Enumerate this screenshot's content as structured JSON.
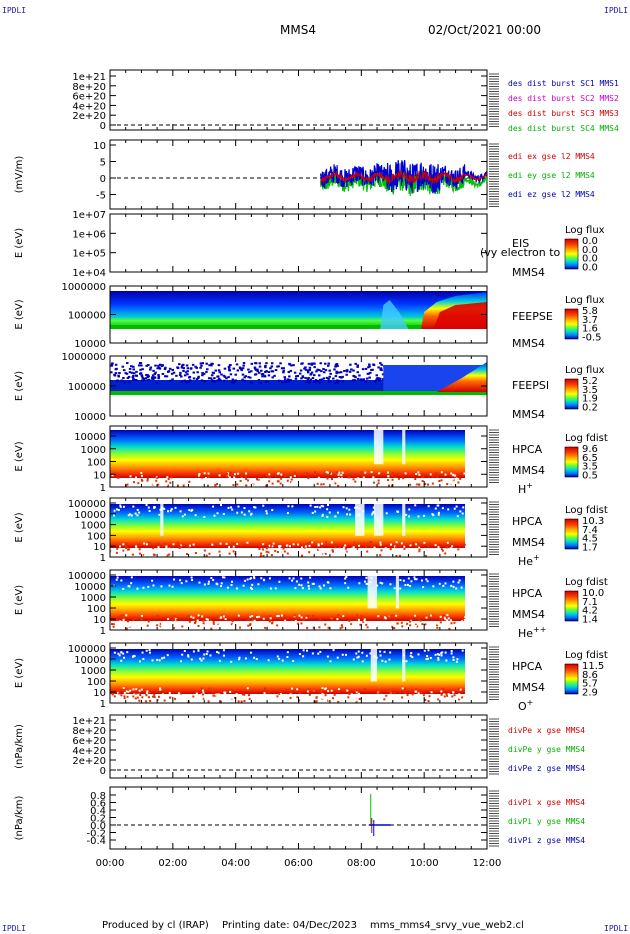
{
  "corner_label": "IPDLI",
  "header": {
    "spacecraft": "MMS4",
    "datetime": "02/Oct/2021 00:00"
  },
  "footer": {
    "produced": "Produced by cl (IRAP)",
    "printing": "Printing date: 04/Dec/2023",
    "script": "mms_mms4_srvy_vue_web2.cl"
  },
  "time_axis": {
    "ticks": [
      "00:00",
      "02:00",
      "04:00",
      "06:00",
      "08:00",
      "10:00",
      "12:00"
    ],
    "range_hours": [
      0,
      12
    ]
  },
  "colors": {
    "red": "#d00000",
    "green": "#00c000",
    "blue": "#0000d0",
    "magenta": "#e000e0",
    "legend_red": "#d00000",
    "legend_magenta": "#cc00cc",
    "legend_green": "#00b000",
    "legend_blue": "#0000b0"
  },
  "chart_data": [
    {
      "type": "line",
      "panel": "des dist burst",
      "yticks": [
        "1e+21",
        "8e+20",
        "6e+20",
        "4e+20",
        "2e+20",
        "0"
      ],
      "legend": [
        "des dist burst SC1 MMS1",
        "des dist burst SC2 MMS2",
        "des dist burst SC3 MMS3",
        "des dist burst SC4 MMS4"
      ],
      "legend_colors": [
        "legend_blue",
        "legend_magenta",
        "legend_red",
        "legend_green"
      ],
      "series": []
    },
    {
      "type": "line",
      "panel": "edi",
      "ylabel": "(mV/m)",
      "yticks": [
        "10",
        "5",
        "0",
        "-5"
      ],
      "ylim": [
        -8,
        10
      ],
      "legend": [
        "edi ex gse l2 MMS4",
        "edi ey gse l2 MMS4",
        "edi ez gse l2 MMS4"
      ],
      "legend_colors": [
        "legend_red",
        "legend_green",
        "legend_blue"
      ],
      "data_start_hour": 6.7,
      "data_end_hour": 12.0
    },
    {
      "type": "heatmap",
      "panel": "EIS",
      "ylabel": "E (eV)",
      "yticks": [
        "1e+07",
        "1e+06",
        "1e+05",
        "1e+04"
      ],
      "labels": [
        "EIS",
        "MMS4"
      ],
      "overlay_text": "(vy electron to",
      "cbar_title": "Log flux",
      "cbar_ticks": [
        "0.0",
        "0.0",
        "0.0",
        "0.0"
      ]
    },
    {
      "type": "heatmap",
      "panel": "FEEPSE",
      "ylabel": "E (eV)",
      "yticks": [
        "1000000",
        "100000",
        "10000"
      ],
      "labels": [
        "FEEPSE",
        "MMS4"
      ],
      "cbar_title": "Log flux",
      "cbar_ticks": [
        "5.8",
        "3.7",
        "1.6",
        "-0.5"
      ]
    },
    {
      "type": "heatmap",
      "panel": "FEEPSI",
      "ylabel": "E (eV)",
      "yticks": [
        "1000000",
        "100000",
        "10000"
      ],
      "labels": [
        "FEEPSI",
        "MMS4"
      ],
      "cbar_title": "Log flux",
      "cbar_ticks": [
        "5.2",
        "3.5",
        "1.9",
        "0.2"
      ]
    },
    {
      "type": "heatmap",
      "panel": "HPCA H+",
      "ylabel": "E (eV)",
      "yticks": [
        "10000",
        "1000",
        "100",
        "10",
        "1"
      ],
      "labels": [
        "HPCA",
        "MMS4"
      ],
      "species": "H",
      "species_sup": "+",
      "cbar_title": "Log fdist",
      "cbar_ticks": [
        "9.6",
        "6.5",
        "3.5",
        "0.5"
      ]
    },
    {
      "type": "heatmap",
      "panel": "HPCA He+",
      "ylabel": "E (eV)",
      "yticks": [
        "100000",
        "10000",
        "1000",
        "100",
        "10",
        "1"
      ],
      "labels": [
        "HPCA",
        "MMS4"
      ],
      "species": "He",
      "species_sup": "+",
      "cbar_title": "Log fdist",
      "cbar_ticks": [
        "10.3",
        "7.4",
        "4.5",
        "1.7"
      ]
    },
    {
      "type": "heatmap",
      "panel": "HPCA He++",
      "ylabel": "E (eV)",
      "yticks": [
        "100000",
        "10000",
        "1000",
        "100",
        "10",
        "1"
      ],
      "labels": [
        "HPCA",
        "MMS4"
      ],
      "species": "He",
      "species_sup": "++",
      "cbar_title": "Log fdist",
      "cbar_ticks": [
        "10.0",
        "7.1",
        "4.2",
        "1.4"
      ]
    },
    {
      "type": "heatmap",
      "panel": "HPCA O+",
      "ylabel": "E (eV)",
      "yticks": [
        "100000",
        "10000",
        "1000",
        "100",
        "10",
        "1"
      ],
      "labels": [
        "HPCA",
        "MMS4"
      ],
      "species": "O",
      "species_sup": "+",
      "cbar_title": "Log fdist",
      "cbar_ticks": [
        "11.5",
        "8.6",
        "5.7",
        "2.9"
      ]
    },
    {
      "type": "line",
      "panel": "divPe",
      "ylabel": "(nPa/km)",
      "yticks": [
        "1e+21",
        "8e+20",
        "6e+20",
        "4e+20",
        "2e+20",
        "0"
      ],
      "legend": [
        "divPe x gse MMS4",
        "divPe y gse MMS4",
        "divPe z gse MMS4"
      ],
      "legend_colors": [
        "legend_red",
        "legend_green",
        "legend_blue"
      ],
      "series": []
    },
    {
      "type": "line",
      "panel": "divPi",
      "ylabel": "(nPa/km)",
      "yticks": [
        "0.8",
        "0.6",
        "0.4",
        "0.2",
        "0.0",
        "-0.2",
        "-0.4"
      ],
      "ylim": [
        -0.5,
        0.9
      ],
      "legend": [
        "divPi x gse MMS4",
        "divPi y gse MMS4",
        "divPi z gse MMS4"
      ],
      "legend_colors": [
        "legend_red",
        "legend_green",
        "legend_blue"
      ],
      "spike_hour": 8.3
    }
  ]
}
